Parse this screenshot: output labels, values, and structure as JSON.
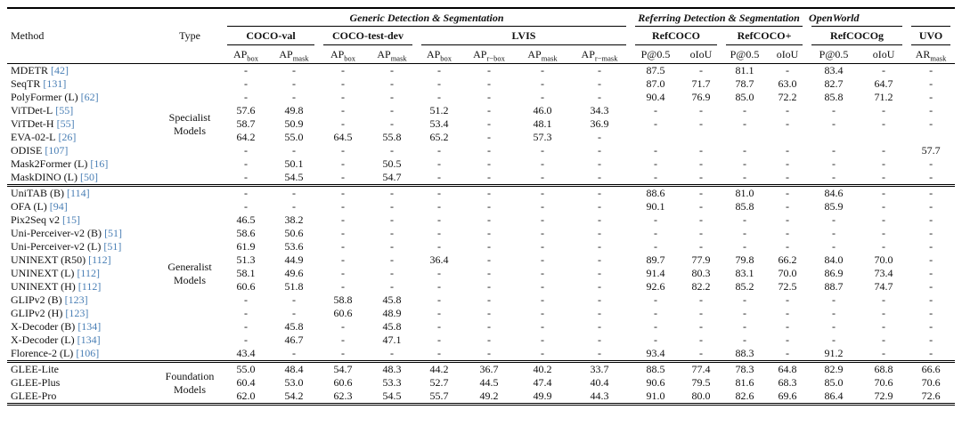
{
  "colors": {
    "citation_link": "#4a7fb5",
    "text": "#111111",
    "rule": "#000000"
  },
  "table": {
    "corner": {
      "method": "Method",
      "type": "Type"
    },
    "groups": [
      {
        "label": "Generic Detection & Segmentation",
        "span": 8
      },
      {
        "label": "Referring Detection & Segmentation",
        "span": 4
      },
      {
        "label": "OpenWorld",
        "span": 2
      },
      {
        "label": "",
        "span": 1
      }
    ],
    "datasets": [
      {
        "label": "COCO-val",
        "span": 2
      },
      {
        "label": "COCO-test-dev",
        "span": 2
      },
      {
        "label": "LVIS",
        "span": 4
      },
      {
        "label": "RefCOCO",
        "span": 2
      },
      {
        "label": "RefCOCO+",
        "span": 2
      },
      {
        "label": "RefCOCOg",
        "span": 2
      },
      {
        "label": "UVO",
        "span": 1
      }
    ],
    "metrics": [
      {
        "base": "AP",
        "sub": "box"
      },
      {
        "base": "AP",
        "sub": "mask"
      },
      {
        "base": "AP",
        "sub": "box"
      },
      {
        "base": "AP",
        "sub": "mask"
      },
      {
        "base": "AP",
        "sub": "box"
      },
      {
        "base": "AP",
        "sub": "r−box"
      },
      {
        "base": "AP",
        "sub": "mask"
      },
      {
        "base": "AP",
        "sub": "r−mask"
      },
      {
        "base": "P@0.5",
        "sub": ""
      },
      {
        "base": "oIoU",
        "sub": ""
      },
      {
        "base": "P@0.5",
        "sub": ""
      },
      {
        "base": "oIoU",
        "sub": ""
      },
      {
        "base": "P@0.5",
        "sub": ""
      },
      {
        "base": "oIoU",
        "sub": ""
      },
      {
        "base": "AR",
        "sub": "mask"
      }
    ],
    "sections": [
      {
        "type_lines": [
          "Specialist",
          "Models"
        ],
        "rows": [
          {
            "method": "MDETR",
            "cite": "[42]",
            "values": [
              "-",
              "-",
              "-",
              "-",
              "-",
              "-",
              "-",
              "-",
              "87.5",
              "-",
              "81.1",
              "-",
              "83.4",
              "-",
              "-"
            ]
          },
          {
            "method": "SeqTR",
            "cite": "[131]",
            "values": [
              "-",
              "-",
              "-",
              "-",
              "-",
              "-",
              "-",
              "-",
              "87.0",
              "71.7",
              "78.7",
              "63.0",
              "82.7",
              "64.7",
              "-"
            ]
          },
          {
            "method": "PolyFormer (L)",
            "cite": "[62]",
            "values": [
              "-",
              "-",
              "-",
              "-",
              "-",
              "-",
              "-",
              "-",
              "90.4",
              "76.9",
              "85.0",
              "72.2",
              "85.8",
              "71.2",
              "-"
            ]
          },
          {
            "method": "ViTDet-L",
            "cite": "[55]",
            "values": [
              "57.6",
              "49.8",
              "-",
              "-",
              "51.2",
              "-",
              "46.0",
              "34.3",
              "-",
              "-",
              "-",
              "-",
              "-",
              "-",
              "-"
            ]
          },
          {
            "method": "ViTDet-H",
            "cite": "[55]",
            "values": [
              "58.7",
              "50.9",
              "-",
              "-",
              "53.4",
              "-",
              "48.1",
              "36.9",
              "-",
              "-",
              "-",
              "-",
              "-",
              "-",
              "-"
            ]
          },
          {
            "method": "EVA-02-L",
            "cite": "[26]",
            "values": [
              "64.2",
              "55.0",
              "64.5",
              "55.8",
              "65.2",
              "-",
              "57.3",
              "-",
              "",
              "",
              "",
              "",
              "",
              "",
              ""
            ]
          },
          {
            "method": "ODISE",
            "cite": "[107]",
            "values": [
              "-",
              "-",
              "-",
              "-",
              "-",
              "-",
              "-",
              "-",
              "-",
              "-",
              "-",
              "-",
              "-",
              "-",
              "57.7"
            ]
          },
          {
            "method": "Mask2Former (L)",
            "cite": "[16]",
            "values": [
              "-",
              "50.1",
              "-",
              "50.5",
              "-",
              "-",
              "-",
              "-",
              "-",
              "-",
              "-",
              "-",
              "-",
              "-",
              "-"
            ]
          },
          {
            "method": "MaskDINO (L)",
            "cite": "[50]",
            "values": [
              "-",
              "54.5",
              "-",
              "54.7",
              "-",
              "-",
              "-",
              "-",
              "-",
              "-",
              "-",
              "-",
              "-",
              "-",
              "-"
            ]
          }
        ]
      },
      {
        "type_lines": [
          "Generalist",
          "Models"
        ],
        "rows": [
          {
            "method": "UniTAB (B)",
            "cite": "[114]",
            "values": [
              "-",
              "-",
              "-",
              "-",
              "-",
              "-",
              "-",
              "-",
              "88.6",
              "-",
              "81.0",
              "-",
              "84.6",
              "-",
              "-"
            ]
          },
          {
            "method": "OFA (L)",
            "cite": "[94]",
            "values": [
              "-",
              "-",
              "-",
              "-",
              "-",
              "-",
              "-",
              "-",
              "90.1",
              "-",
              "85.8",
              "-",
              "85.9",
              "-",
              "-"
            ]
          },
          {
            "method": "Pix2Seq v2",
            "cite": "[15]",
            "values": [
              "46.5",
              "38.2",
              "-",
              "-",
              "-",
              "-",
              "-",
              "-",
              "-",
              "-",
              "-",
              "-",
              "-",
              "-",
              "-"
            ]
          },
          {
            "method": "Uni-Perceiver-v2 (B)",
            "cite": "[51]",
            "values": [
              "58.6",
              "50.6",
              "-",
              "-",
              "-",
              "-",
              "-",
              "-",
              "-",
              "-",
              "-",
              "-",
              "-",
              "-",
              "-"
            ]
          },
          {
            "method": "Uni-Perceiver-v2 (L)",
            "cite": "[51]",
            "values": [
              "61.9",
              "53.6",
              "-",
              "-",
              "-",
              "-",
              "-",
              "-",
              "-",
              "-",
              "-",
              "-",
              "-",
              "-",
              "-"
            ]
          },
          {
            "method": "UNINEXT (R50)",
            "cite": "[112]",
            "values": [
              "51.3",
              "44.9",
              "-",
              "-",
              "36.4",
              "-",
              "-",
              "-",
              "89.7",
              "77.9",
              "79.8",
              "66.2",
              "84.0",
              "70.0",
              "-"
            ]
          },
          {
            "method": "UNINEXT (L)",
            "cite": "[112]",
            "values": [
              "58.1",
              "49.6",
              "-",
              "-",
              "-",
              "-",
              "-",
              "-",
              "91.4",
              "80.3",
              "83.1",
              "70.0",
              "86.9",
              "73.4",
              "-"
            ]
          },
          {
            "method": "UNINEXT (H)",
            "cite": "[112]",
            "values": [
              "60.6",
              "51.8",
              "-",
              "-",
              "-",
              "-",
              "-",
              "-",
              "92.6",
              "82.2",
              "85.2",
              "72.5",
              "88.7",
              "74.7",
              "-"
            ]
          },
          {
            "method": "GLIPv2 (B)",
            "cite": "[123]",
            "values": [
              "-",
              "-",
              "58.8",
              "45.8",
              "-",
              "-",
              "-",
              "-",
              "-",
              "-",
              "-",
              "-",
              "-",
              "-",
              "-"
            ]
          },
          {
            "method": "GLIPv2 (H)",
            "cite": "[123]",
            "values": [
              "-",
              "-",
              "60.6",
              "48.9",
              "-",
              "-",
              "-",
              "-",
              "-",
              "-",
              "-",
              "-",
              "-",
              "-",
              "-"
            ]
          },
          {
            "method": "X-Decoder (B)",
            "cite": "[134]",
            "values": [
              "-",
              "45.8",
              "-",
              "45.8",
              "-",
              "-",
              "-",
              "-",
              "-",
              "-",
              "-",
              "-",
              "-",
              "-",
              "-"
            ]
          },
          {
            "method": "X-Decoder (L)",
            "cite": "[134]",
            "values": [
              "-",
              "46.7",
              "-",
              "47.1",
              "-",
              "-",
              "-",
              "-",
              "-",
              "-",
              "-",
              "-",
              "-",
              "-",
              "-"
            ]
          },
          {
            "method": "Florence-2 (L)",
            "cite": "[106]",
            "values": [
              "43.4",
              "-",
              "-",
              "-",
              "-",
              "-",
              "-",
              "-",
              "93.4",
              "-",
              "88.3",
              "-",
              "91.2",
              "-",
              "-"
            ]
          }
        ]
      },
      {
        "type_lines": [
          "Foundation",
          "Models"
        ],
        "rows": [
          {
            "method": "GLEE-Lite",
            "values": [
              "55.0",
              "48.4",
              "54.7",
              "48.3",
              "44.2",
              "36.7",
              "40.2",
              "33.7",
              "88.5",
              "77.4",
              "78.3",
              "64.8",
              "82.9",
              "68.8",
              "66.6"
            ]
          },
          {
            "method": "GLEE-Plus",
            "values": [
              "60.4",
              "53.0",
              "60.6",
              "53.3",
              "52.7",
              "44.5",
              "47.4",
              "40.4",
              "90.6",
              "79.5",
              "81.6",
              "68.3",
              "85.0",
              "70.6",
              "70.6"
            ]
          },
          {
            "method": "GLEE-Pro",
            "values": [
              "62.0",
              "54.2",
              "62.3",
              "54.5",
              "55.7",
              "49.2",
              "49.9",
              "44.3",
              "91.0",
              "80.0",
              "82.6",
              "69.6",
              "86.4",
              "72.9",
              "72.6"
            ]
          }
        ]
      }
    ]
  }
}
